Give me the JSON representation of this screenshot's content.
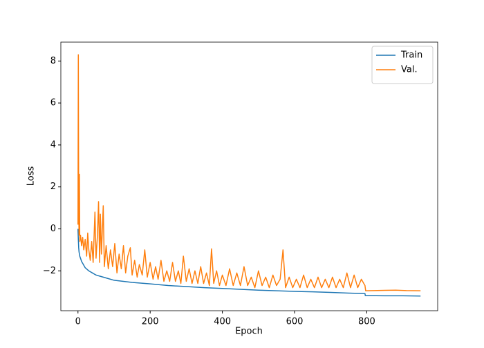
{
  "chart_data": {
    "type": "line",
    "xlabel": "Epoch",
    "ylabel": "Loss",
    "xlim": [
      -47.45,
      996.45
    ],
    "ylim": [
      -3.9,
      8.9
    ],
    "xticks": [
      0,
      200,
      400,
      600,
      800
    ],
    "yticks": [
      {
        "value": -2,
        "label": "−2"
      },
      0,
      2,
      4,
      6,
      8
    ],
    "legend": "upper right",
    "series": [
      {
        "name": "Train",
        "color": "#1f77b4",
        "x": [
          0,
          1,
          2,
          3,
          5,
          8,
          10,
          15,
          20,
          30,
          40,
          50,
          60,
          80,
          100,
          150,
          200,
          250,
          300,
          350,
          400,
          450,
          500,
          550,
          600,
          650,
          700,
          750,
          795,
          796,
          800,
          850,
          900,
          949
        ],
        "values": [
          0,
          -0.5,
          -0.9,
          -1.1,
          -1.3,
          -1.45,
          -1.55,
          -1.7,
          -1.85,
          -2.0,
          -2.1,
          -2.2,
          -2.25,
          -2.35,
          -2.45,
          -2.55,
          -2.62,
          -2.7,
          -2.75,
          -2.8,
          -2.84,
          -2.88,
          -2.92,
          -2.95,
          -2.98,
          -3.0,
          -3.03,
          -3.06,
          -3.08,
          -3.18,
          -3.18,
          -3.19,
          -3.19,
          -3.2
        ]
      },
      {
        "name": "Val.",
        "color": "#ff7f0e",
        "x": [
          0,
          1,
          2,
          3,
          4,
          5,
          7,
          10,
          13,
          16,
          20,
          24,
          27,
          30,
          34,
          38,
          42,
          47,
          50,
          54,
          57,
          60,
          62,
          65,
          70,
          73,
          78,
          84,
          90,
          96,
          102,
          108,
          114,
          120,
          126,
          132,
          138,
          145,
          150,
          157,
          164,
          170,
          178,
          185,
          192,
          200,
          208,
          215,
          222,
          230,
          238,
          246,
          254,
          262,
          270,
          278,
          285,
          292,
          300,
          308,
          316,
          324,
          332,
          340,
          348,
          356,
          364,
          370,
          376,
          384,
          392,
          400,
          410,
          420,
          430,
          440,
          450,
          460,
          470,
          480,
          490,
          500,
          510,
          520,
          530,
          540,
          550,
          560,
          568,
          575,
          585,
          595,
          605,
          615,
          625,
          635,
          645,
          655,
          665,
          675,
          685,
          695,
          705,
          715,
          725,
          735,
          745,
          755,
          765,
          775,
          785,
          795,
          797,
          820,
          850,
          880,
          910,
          949
        ],
        "values": [
          0.2,
          8.3,
          1.0,
          -0.3,
          2.6,
          -0.6,
          -0.3,
          -0.8,
          -0.4,
          -1.0,
          -0.5,
          -1.3,
          -0.2,
          -1.0,
          -1.5,
          -0.6,
          -1.6,
          0.8,
          -1.4,
          -0.3,
          1.3,
          -1.6,
          0.7,
          -1.2,
          1.1,
          -1.8,
          -0.8,
          -1.9,
          -1.0,
          -1.8,
          -0.7,
          -2.1,
          -1.2,
          -1.9,
          -0.8,
          -2.1,
          -1.3,
          -0.9,
          -2.2,
          -1.5,
          -2.3,
          -1.7,
          -2.2,
          -1.0,
          -2.3,
          -1.6,
          -2.4,
          -1.8,
          -2.4,
          -1.5,
          -2.5,
          -2.0,
          -2.5,
          -1.6,
          -2.5,
          -2.0,
          -2.6,
          -1.3,
          -2.5,
          -1.9,
          -2.6,
          -2.0,
          -2.6,
          -1.8,
          -2.6,
          -2.1,
          -2.7,
          -0.95,
          -2.6,
          -2.0,
          -2.7,
          -2.2,
          -2.7,
          -1.9,
          -2.7,
          -2.1,
          -2.7,
          -1.8,
          -2.7,
          -2.3,
          -2.8,
          -2.0,
          -2.7,
          -2.3,
          -2.8,
          -2.2,
          -2.7,
          -2.4,
          -1.0,
          -2.8,
          -2.3,
          -2.8,
          -2.4,
          -2.8,
          -2.2,
          -2.8,
          -2.4,
          -2.8,
          -2.3,
          -2.8,
          -2.4,
          -2.8,
          -2.3,
          -2.8,
          -2.4,
          -2.8,
          -2.1,
          -2.8,
          -2.2,
          -2.8,
          -2.4,
          -2.7,
          -2.95,
          -2.94,
          -2.93,
          -2.92,
          -2.94,
          -2.95
        ]
      }
    ]
  }
}
